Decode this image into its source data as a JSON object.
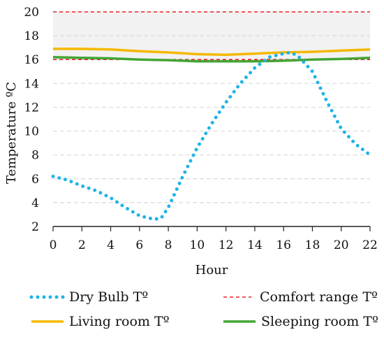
{
  "chart_data": {
    "type": "line",
    "xlabel": "Hour",
    "ylabel": "Temperature ºC",
    "xlim": [
      0,
      22
    ],
    "ylim": [
      2,
      20
    ],
    "xticks": [
      0,
      2,
      4,
      6,
      8,
      10,
      12,
      14,
      16,
      18,
      20,
      22
    ],
    "yticks": [
      2,
      4,
      6,
      8,
      10,
      12,
      14,
      16,
      18,
      20
    ],
    "grid": "horizontal-dashed",
    "legend_position": "bottom",
    "comfort_band": {
      "low": 16,
      "high": 20,
      "fill": "#f2f2f2"
    },
    "series": [
      {
        "name": "Dry Bulb Tº",
        "color": "#1fb4e6",
        "style": "dotted",
        "x": [
          0,
          1,
          2,
          3,
          4,
          5,
          6,
          7,
          7.5,
          8,
          9,
          10,
          11,
          12,
          13,
          14,
          15,
          16,
          16.5,
          17,
          18,
          19,
          20,
          21,
          22
        ],
        "y": [
          6.2,
          5.9,
          5.4,
          5.0,
          4.4,
          3.6,
          2.9,
          2.6,
          2.7,
          3.6,
          6.2,
          8.6,
          10.6,
          12.4,
          14.0,
          15.3,
          16.2,
          16.5,
          16.6,
          16.3,
          15.0,
          12.5,
          10.2,
          8.9,
          8.0
        ]
      },
      {
        "name": "Comfort range Tº",
        "color": "#e8232a",
        "style": "dashed",
        "segments": [
          {
            "x": [
              0,
              22
            ],
            "y": [
              20,
              20
            ]
          },
          {
            "x": [
              0,
              22
            ],
            "y": [
              16,
              16
            ]
          }
        ]
      },
      {
        "name": "Living room Tº",
        "color": "#f5b800",
        "style": "solid",
        "x": [
          0,
          2,
          4,
          6,
          8,
          10,
          12,
          14,
          16,
          18,
          20,
          22
        ],
        "y": [
          16.9,
          16.9,
          16.85,
          16.7,
          16.6,
          16.45,
          16.4,
          16.5,
          16.6,
          16.65,
          16.75,
          16.85
        ]
      },
      {
        "name": "Sleeping room Tº",
        "color": "#43a535",
        "style": "solid",
        "x": [
          0,
          2,
          4,
          6,
          8,
          10,
          12,
          14,
          16,
          18,
          20,
          22
        ],
        "y": [
          16.2,
          16.15,
          16.1,
          16.0,
          15.95,
          15.85,
          15.85,
          15.85,
          15.9,
          16.0,
          16.05,
          16.15
        ]
      }
    ]
  }
}
